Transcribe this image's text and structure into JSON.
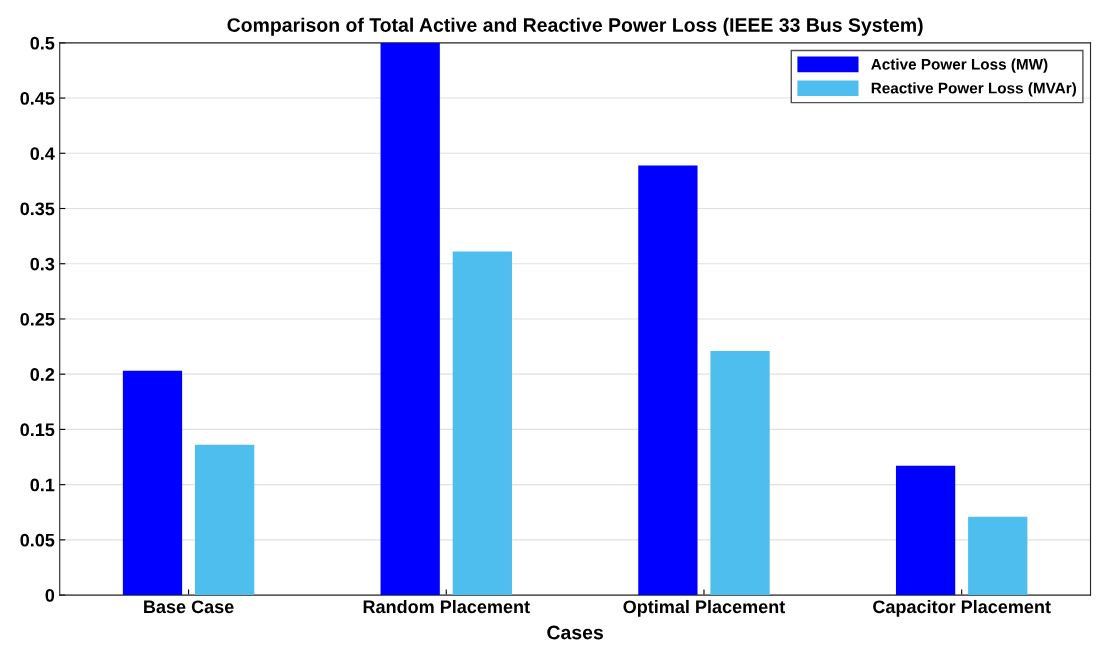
{
  "chart_data": {
    "type": "bar",
    "title": "Comparison of Total Active and Reactive Power Loss (IEEE 33 Bus System)",
    "xlabel": "Cases",
    "categories": [
      "Base Case",
      "Random Placement",
      "Optimal Placement",
      "Capacitor Placement"
    ],
    "series": [
      {
        "name": "Active Power Loss (MW)",
        "color": "#0000ff",
        "values": [
          0.203,
          0.5,
          0.389,
          0.117
        ]
      },
      {
        "name": "Reactive Power Loss (MVAr)",
        "color": "#4dbeee",
        "values": [
          0.136,
          0.311,
          0.221,
          0.071
        ]
      }
    ],
    "ylim": [
      0,
      0.5
    ],
    "yticks": [
      0,
      0.05,
      0.1,
      0.15,
      0.2,
      0.25,
      0.3,
      0.35,
      0.4,
      0.45,
      0.5
    ],
    "grid": "y",
    "legend": "top right"
  }
}
